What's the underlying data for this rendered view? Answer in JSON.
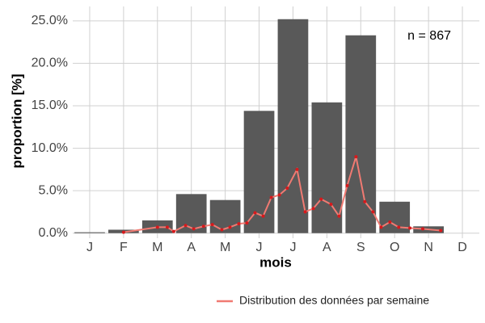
{
  "chart_data": {
    "type": "bar",
    "categories": [
      "J",
      "F",
      "M",
      "A",
      "M",
      "J",
      "J",
      "A",
      "S",
      "O",
      "N",
      "D"
    ],
    "values": [
      0.1,
      0.4,
      1.5,
      4.6,
      3.9,
      14.4,
      25.2,
      15.4,
      23.3,
      3.7,
      0.8,
      0
    ],
    "color": "#595959",
    "xlim": [
      0.5,
      12.5
    ],
    "ylim": [
      -0.6,
      26.7
    ],
    "yticks": [
      {
        "value": 0,
        "label": "0.0%"
      },
      {
        "value": 5,
        "label": "5.0%"
      },
      {
        "value": 10,
        "label": "10.0%"
      },
      {
        "value": 15,
        "label": "15.0%"
      },
      {
        "value": 20,
        "label": "20.0%"
      },
      {
        "value": 25,
        "label": "25.0%"
      }
    ],
    "grid": true,
    "y_label": "proportion [%]",
    "x_label": "mois",
    "annotation": "n = 867",
    "line": {
      "name": "Distribution des données par semaine",
      "color": "#f07a72",
      "point_color": "#d7191c",
      "x": [
        2.0,
        3.0,
        3.29,
        3.48,
        3.83,
        4.07,
        4.36,
        4.62,
        4.9,
        5.14,
        5.4,
        5.64,
        5.88,
        6.12,
        6.36,
        6.6,
        6.83,
        7.12,
        7.36,
        7.6,
        7.83,
        8.12,
        8.36,
        8.6,
        8.86,
        9.12,
        9.36,
        9.6,
        9.86,
        10.12,
        10.45,
        10.83,
        11.36
      ],
      "values": [
        0.1,
        0.7,
        0.7,
        0.2,
        0.9,
        0.5,
        0.8,
        1.0,
        0.4,
        0.7,
        1.1,
        1.2,
        2.4,
        2.0,
        4.2,
        4.5,
        5.3,
        7.5,
        2.5,
        2.9,
        4.0,
        3.4,
        2.0,
        5.6,
        9.0,
        3.7,
        2.5,
        0.7,
        1.3,
        0.7,
        0.6,
        0.5,
        0.3
      ]
    },
    "legend": "bottom-right"
  }
}
